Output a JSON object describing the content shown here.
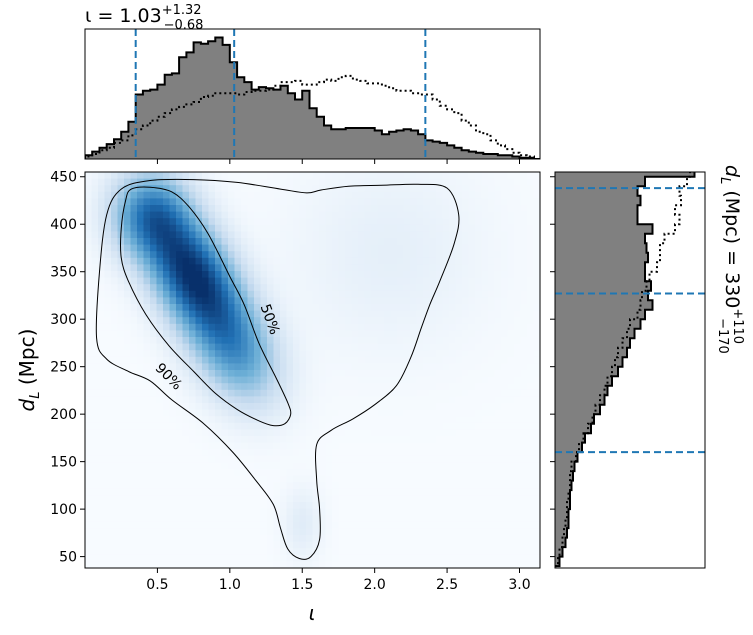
{
  "chart_data": [
    {
      "panel": "top-marginal",
      "type": "area",
      "title_text": "ι = 1.03",
      "title_sup": "+1.32",
      "title_sub": "−0.68",
      "xlim": [
        0.0,
        3.1416
      ],
      "x": [
        0.0,
        0.05,
        0.1,
        0.15,
        0.2,
        0.25,
        0.3,
        0.35,
        0.4,
        0.45,
        0.5,
        0.55,
        0.6,
        0.65,
        0.7,
        0.75,
        0.8,
        0.85,
        0.9,
        0.95,
        1.0,
        1.05,
        1.1,
        1.15,
        1.2,
        1.25,
        1.3,
        1.35,
        1.4,
        1.45,
        1.5,
        1.55,
        1.6,
        1.65,
        1.7,
        1.75,
        1.8,
        1.85,
        1.9,
        1.95,
        2.0,
        2.05,
        2.1,
        2.15,
        2.2,
        2.25,
        2.3,
        2.35,
        2.4,
        2.45,
        2.5,
        2.55,
        2.6,
        2.65,
        2.7,
        2.75,
        2.8,
        2.85,
        2.9,
        2.95,
        3.0,
        3.05,
        3.1
      ],
      "series": [
        {
          "style": "filled-step",
          "values": [
            0.03,
            0.06,
            0.09,
            0.12,
            0.16,
            0.22,
            0.3,
            0.52,
            0.55,
            0.56,
            0.6,
            0.68,
            0.69,
            0.82,
            0.86,
            0.94,
            0.93,
            0.95,
            0.98,
            0.92,
            0.78,
            0.66,
            0.62,
            0.56,
            0.58,
            0.57,
            0.56,
            0.59,
            0.53,
            0.48,
            0.55,
            0.41,
            0.34,
            0.27,
            0.24,
            0.24,
            0.25,
            0.25,
            0.25,
            0.25,
            0.23,
            0.2,
            0.22,
            0.23,
            0.24,
            0.23,
            0.2,
            0.15,
            0.14,
            0.13,
            0.11,
            0.09,
            0.07,
            0.06,
            0.05,
            0.04,
            0.04,
            0.03,
            0.03,
            0.02,
            0.01,
            0.01,
            0.0
          ]
        },
        {
          "style": "dotted-step",
          "values": [
            0.02,
            0.04,
            0.07,
            0.09,
            0.13,
            0.15,
            0.19,
            0.24,
            0.27,
            0.31,
            0.34,
            0.37,
            0.4,
            0.42,
            0.44,
            0.46,
            0.5,
            0.51,
            0.53,
            0.53,
            0.53,
            0.52,
            0.54,
            0.55,
            0.55,
            0.56,
            0.59,
            0.62,
            0.62,
            0.63,
            0.6,
            0.6,
            0.62,
            0.64,
            0.63,
            0.66,
            0.67,
            0.64,
            0.63,
            0.61,
            0.61,
            0.59,
            0.57,
            0.55,
            0.55,
            0.53,
            0.52,
            0.52,
            0.48,
            0.43,
            0.4,
            0.37,
            0.31,
            0.27,
            0.22,
            0.2,
            0.15,
            0.11,
            0.08,
            0.05,
            0.03,
            0.02,
            0.0
          ]
        }
      ],
      "quantile_lines": [
        0.35,
        1.03,
        2.35
      ]
    },
    {
      "panel": "main-2d",
      "type": "heatmap",
      "xlabel": "ι",
      "ylabel": "d",
      "ylabel_sub": "L",
      "ylabel_unit": " (Mpc)",
      "xlim": [
        0.0,
        3.1416
      ],
      "ylim": [
        38,
        455
      ],
      "xticks": [
        "0.5",
        "1.0",
        "1.5",
        "2.0",
        "2.5",
        "3.0"
      ],
      "xtick_values": [
        0.5,
        1.0,
        1.5,
        2.0,
        2.5,
        3.0
      ],
      "yticks": [
        "50",
        "100",
        "150",
        "200",
        "250",
        "300",
        "350",
        "400",
        "450"
      ],
      "ytick_values": [
        50,
        100,
        150,
        200,
        250,
        300,
        350,
        400,
        450
      ],
      "colormap": [
        "#f7fbff",
        "#c6dbef",
        "#6baed6",
        "#2171b5",
        "#08306b"
      ],
      "density_peaks": [
        {
          "x": 0.75,
          "y": 345,
          "sx": 0.22,
          "sy": 45,
          "rho": -0.5,
          "w": 1.0
        },
        {
          "x": 0.45,
          "y": 410,
          "sx": 0.18,
          "sy": 30,
          "rho": 0.0,
          "w": 0.55
        },
        {
          "x": 1.05,
          "y": 265,
          "sx": 0.2,
          "sy": 38,
          "rho": -0.3,
          "w": 0.45
        },
        {
          "x": 1.5,
          "y": 85,
          "sx": 0.09,
          "sy": 25,
          "rho": 0.0,
          "w": 0.08
        },
        {
          "x": 2.1,
          "y": 370,
          "sx": 0.45,
          "sy": 70,
          "rho": 0.0,
          "w": 0.06
        }
      ],
      "contours": [
        {
          "label": "50%",
          "label_at": [
            1.28,
            300
          ],
          "points": [
            [
              0.25,
              395
            ],
            [
              0.28,
              425
            ],
            [
              0.32,
              437
            ],
            [
              0.45,
              439
            ],
            [
              0.6,
              434
            ],
            [
              0.72,
              418
            ],
            [
              0.85,
              390
            ],
            [
              1.0,
              345
            ],
            [
              1.1,
              315
            ],
            [
              1.2,
              275
            ],
            [
              1.32,
              238
            ],
            [
              1.4,
              212
            ],
            [
              1.42,
              200
            ],
            [
              1.38,
              190
            ],
            [
              1.3,
              188
            ],
            [
              1.2,
              193
            ],
            [
              1.05,
              205
            ],
            [
              0.9,
              222
            ],
            [
              0.75,
              245
            ],
            [
              0.58,
              272
            ],
            [
              0.42,
              305
            ],
            [
              0.3,
              340
            ],
            [
              0.25,
              365
            ]
          ]
        },
        {
          "label": "90%",
          "label_at": [
            0.58,
            240
          ],
          "points": [
            [
              0.08,
              280
            ],
            [
              0.1,
              350
            ],
            [
              0.15,
              410
            ],
            [
              0.25,
              437
            ],
            [
              0.45,
              446
            ],
            [
              0.75,
              447
            ],
            [
              1.05,
              444
            ],
            [
              1.35,
              437
            ],
            [
              1.53,
              433
            ],
            [
              1.63,
              436
            ],
            [
              1.82,
              440
            ],
            [
              2.05,
              441
            ],
            [
              2.3,
              442
            ],
            [
              2.5,
              438
            ],
            [
              2.58,
              410
            ],
            [
              2.55,
              380
            ],
            [
              2.45,
              340
            ],
            [
              2.38,
              315
            ],
            [
              2.32,
              290
            ],
            [
              2.25,
              260
            ],
            [
              2.15,
              230
            ],
            [
              2.0,
              210
            ],
            [
              1.85,
              195
            ],
            [
              1.7,
              183
            ],
            [
              1.6,
              168
            ],
            [
              1.6,
              130
            ],
            [
              1.62,
              100
            ],
            [
              1.62,
              68
            ],
            [
              1.56,
              50
            ],
            [
              1.48,
              48
            ],
            [
              1.4,
              58
            ],
            [
              1.35,
              80
            ],
            [
              1.3,
              105
            ],
            [
              1.18,
              130
            ],
            [
              1.02,
              160
            ],
            [
              0.82,
              190
            ],
            [
              0.6,
              215
            ],
            [
              0.45,
              235
            ],
            [
              0.3,
              245
            ],
            [
              0.15,
              258
            ]
          ]
        }
      ]
    },
    {
      "panel": "right-marginal",
      "type": "area",
      "orientation": "horizontal",
      "title_text": "d",
      "title_sub_L": "L",
      "title_rest": " (Mpc) = 330",
      "title_sup": "+110",
      "title_sub": "−170",
      "ylim": [
        38,
        455
      ],
      "y": [
        40,
        50,
        60,
        70,
        80,
        90,
        100,
        110,
        120,
        130,
        140,
        150,
        160,
        170,
        180,
        190,
        200,
        210,
        220,
        230,
        240,
        250,
        260,
        270,
        280,
        290,
        300,
        310,
        320,
        330,
        340,
        350,
        360,
        370,
        380,
        390,
        400,
        410,
        420,
        430,
        440,
        450
      ],
      "series": [
        {
          "style": "filled-step",
          "values": [
            0.03,
            0.05,
            0.07,
            0.08,
            0.09,
            0.09,
            0.1,
            0.1,
            0.11,
            0.12,
            0.13,
            0.15,
            0.18,
            0.2,
            0.24,
            0.26,
            0.3,
            0.33,
            0.35,
            0.38,
            0.42,
            0.45,
            0.48,
            0.5,
            0.53,
            0.57,
            0.6,
            0.65,
            0.62,
            0.64,
            0.6,
            0.6,
            0.62,
            0.61,
            0.6,
            0.65,
            0.55,
            0.55,
            0.57,
            0.55,
            0.6,
            0.93
          ]
        },
        {
          "style": "dotted-step",
          "values": [
            0.02,
            0.03,
            0.05,
            0.06,
            0.07,
            0.08,
            0.08,
            0.09,
            0.1,
            0.1,
            0.11,
            0.14,
            0.16,
            0.19,
            0.22,
            0.25,
            0.27,
            0.3,
            0.33,
            0.35,
            0.38,
            0.4,
            0.42,
            0.45,
            0.48,
            0.5,
            0.55,
            0.57,
            0.58,
            0.61,
            0.63,
            0.68,
            0.7,
            0.7,
            0.73,
            0.8,
            0.83,
            0.8,
            0.84,
            0.83,
            0.88,
            0.9
          ]
        }
      ],
      "quantile_lines": [
        160,
        327,
        438
      ]
    }
  ]
}
